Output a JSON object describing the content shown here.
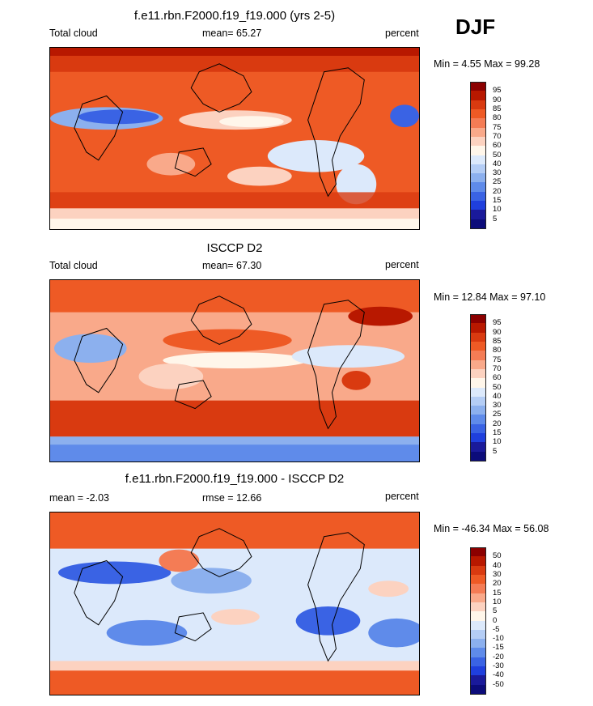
{
  "season": "DJF",
  "panels": [
    {
      "id": "model",
      "title": "f.e11.rbn.F2000.f19_f19.000 (yrs 2-5)",
      "left_label": "Total cloud",
      "center_label": "mean=  65.27",
      "right_label": "percent",
      "minmax": "Min =   4.55 Max =  99.28",
      "colorbar_labels": [
        "95",
        "90",
        "85",
        "80",
        "75",
        "70",
        "60",
        "50",
        "40",
        "30",
        "25",
        "20",
        "15",
        "10",
        "5"
      ],
      "colorbar_colors": [
        "#8b0000",
        "#b81800",
        "#d93a10",
        "#ee5a25",
        "#f47c55",
        "#f9a98a",
        "#fcd2c0",
        "#fff6ea",
        "#dce9fb",
        "#b4cdf5",
        "#8cb0ee",
        "#5f8bea",
        "#3a63e4",
        "#1f3fdd",
        "#1a1a9a",
        "#0c0c7a"
      ]
    },
    {
      "id": "obs",
      "title": "ISCCP D2",
      "left_label": "Total cloud",
      "center_label": "mean=  67.30",
      "right_label": "percent",
      "minmax": "Min =  12.84 Max =  97.10",
      "colorbar_labels": [
        "95",
        "90",
        "85",
        "80",
        "75",
        "70",
        "60",
        "50",
        "40",
        "30",
        "25",
        "20",
        "15",
        "10",
        "5"
      ],
      "colorbar_colors": [
        "#8b0000",
        "#b81800",
        "#d93a10",
        "#ee5a25",
        "#f47c55",
        "#f9a98a",
        "#fcd2c0",
        "#fff6ea",
        "#dce9fb",
        "#b4cdf5",
        "#8cb0ee",
        "#5f8bea",
        "#3a63e4",
        "#1f3fdd",
        "#1a1a9a",
        "#0c0c7a"
      ]
    },
    {
      "id": "diff",
      "title": "f.e11.rbn.F2000.f19_f19.000 - ISCCP D2",
      "left_label": "mean =  -2.03",
      "center_label": "rmse =  12.66",
      "right_label": "percent",
      "minmax": "Min = -46.34 Max =  56.08",
      "colorbar_labels": [
        "50",
        "40",
        "30",
        "20",
        "15",
        "10",
        "5",
        "0",
        "-5",
        "-10",
        "-15",
        "-20",
        "-30",
        "-40",
        "-50"
      ],
      "colorbar_colors": [
        "#8b0000",
        "#b81800",
        "#d93a10",
        "#ee5a25",
        "#f47c55",
        "#f9a98a",
        "#fcd2c0",
        "#fff6ea",
        "#dce9fb",
        "#b4cdf5",
        "#8cb0ee",
        "#5f8bea",
        "#3a63e4",
        "#1f3fdd",
        "#1a1a9a",
        "#0c0c7a"
      ]
    }
  ]
}
